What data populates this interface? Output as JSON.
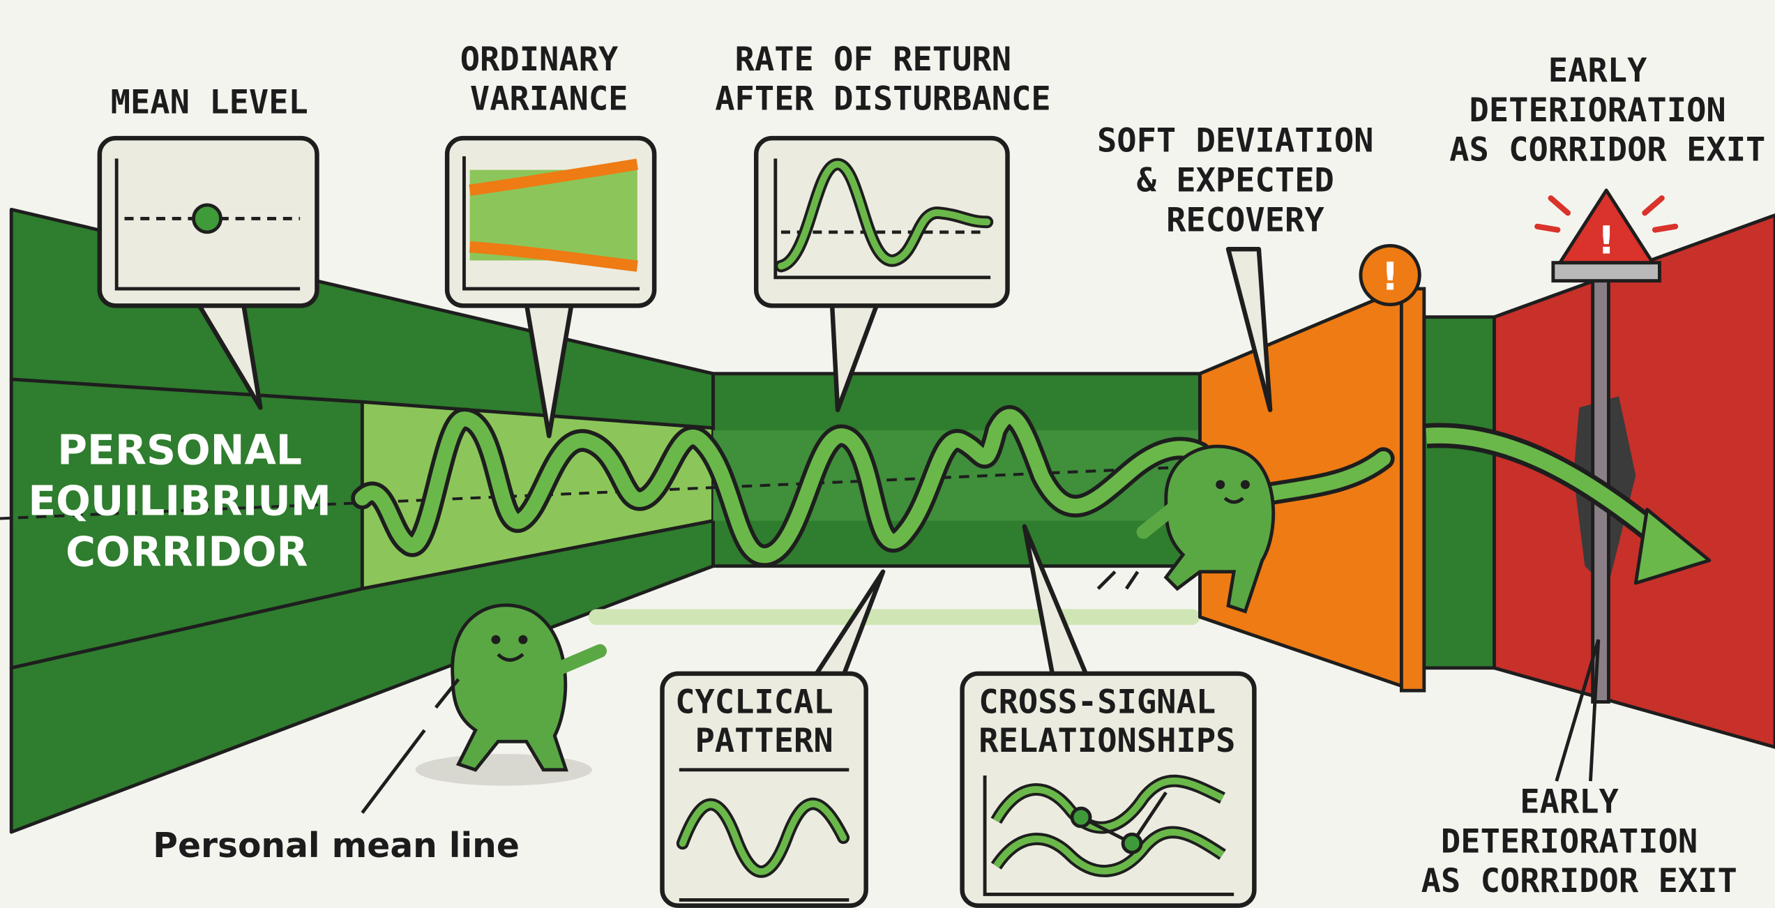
{
  "title": {
    "lines": [
      "PERSONAL",
      "EQUILIBRIUM",
      "CORRIDOR"
    ]
  },
  "callouts": [
    {
      "lines": [
        "MEAN LEVEL"
      ]
    },
    {
      "lines": [
        "ORDINARY",
        "VARIANCE"
      ]
    },
    {
      "lines": [
        "RATE OF RETURN",
        "AFTER DISTURBANCE"
      ]
    },
    {
      "lines": [
        "SOFT DEVIATION",
        "& EXPECTED",
        "RECOVERY"
      ]
    },
    {
      "lines": [
        "EARLY",
        "DETERIORATION",
        "AS CORRIDOR EXIT"
      ]
    },
    {
      "lines": [
        "CYCLICAL",
        "PATTERN"
      ]
    },
    {
      "lines": [
        "CROSS-SIGNAL",
        "RELATIONSHIPS"
      ]
    },
    {
      "lines": [
        "EARLY",
        "DETERIORATION",
        "AS CORRIDOR EXIT"
      ]
    }
  ],
  "mean_line_label": "Personal mean line"
}
